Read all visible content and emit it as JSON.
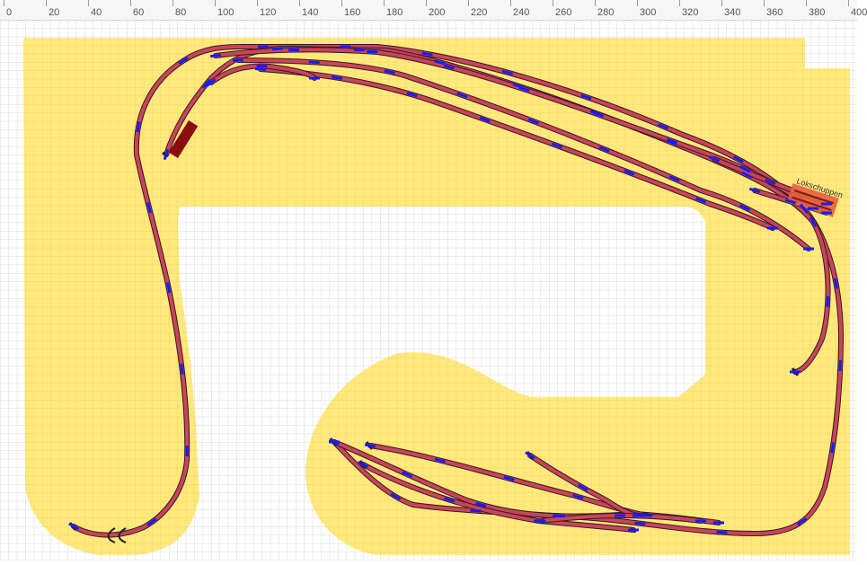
{
  "ruler": {
    "ticks": [
      "0",
      "20",
      "40",
      "60",
      "80",
      "100",
      "120",
      "140",
      "160",
      "180",
      "200",
      "220",
      "240",
      "260",
      "280",
      "300",
      "320",
      "340",
      "360",
      "380",
      "400"
    ]
  },
  "labels": {
    "loco_shed": "Lokschuppen"
  },
  "colors": {
    "board": "#ffe97d",
    "grid": "#d8d8d8",
    "rail": "#3a1a24",
    "sleeper": "#c8455a",
    "connector": "#1a1aff",
    "shed": "#e8603c",
    "wagon": "#8b0e0e",
    "buffer": "#222222"
  }
}
